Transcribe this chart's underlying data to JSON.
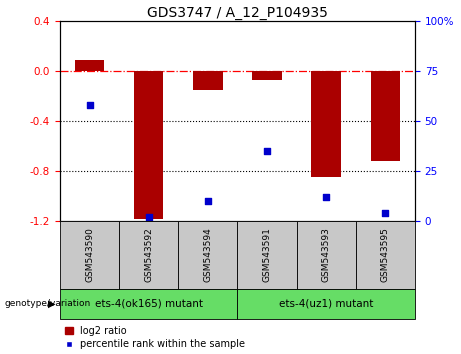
{
  "title": "GDS3747 / A_12_P104935",
  "samples": [
    "GSM543590",
    "GSM543592",
    "GSM543594",
    "GSM543591",
    "GSM543593",
    "GSM543595"
  ],
  "log2_ratio": [
    0.09,
    -1.18,
    -0.15,
    -0.07,
    -0.85,
    -0.72
  ],
  "percentile_rank": [
    58,
    2,
    10,
    35,
    12,
    4
  ],
  "ylim_left": [
    -1.2,
    0.4
  ],
  "ylim_right": [
    0,
    100
  ],
  "yticks_left": [
    -1.2,
    -0.8,
    -0.4,
    0.0,
    0.4
  ],
  "yticks_right": [
    0,
    25,
    50,
    75,
    100
  ],
  "ytick_labels_right": [
    "0",
    "25",
    "50",
    "75",
    "100%"
  ],
  "hlines_dotted": [
    -0.4,
    -0.8
  ],
  "hline_dashed": 0.0,
  "bar_color": "#aa0000",
  "dot_color": "#0000cc",
  "group1_label": "ets-4(ok165) mutant",
  "group2_label": "ets-4(uz1) mutant",
  "group1_indices": [
    0,
    1,
    2
  ],
  "group2_indices": [
    3,
    4,
    5
  ],
  "sample_box_color": "#c8c8c8",
  "group_box_color": "#66dd66",
  "genotype_label": "genotype/variation",
  "legend_log2": "log2 ratio",
  "legend_pct": "percentile rank within the sample",
  "bar_width": 0.5,
  "title_fontsize": 10,
  "tick_fontsize": 7.5,
  "sample_fontsize": 6.5,
  "group_fontsize": 7.5,
  "legend_fontsize": 7
}
